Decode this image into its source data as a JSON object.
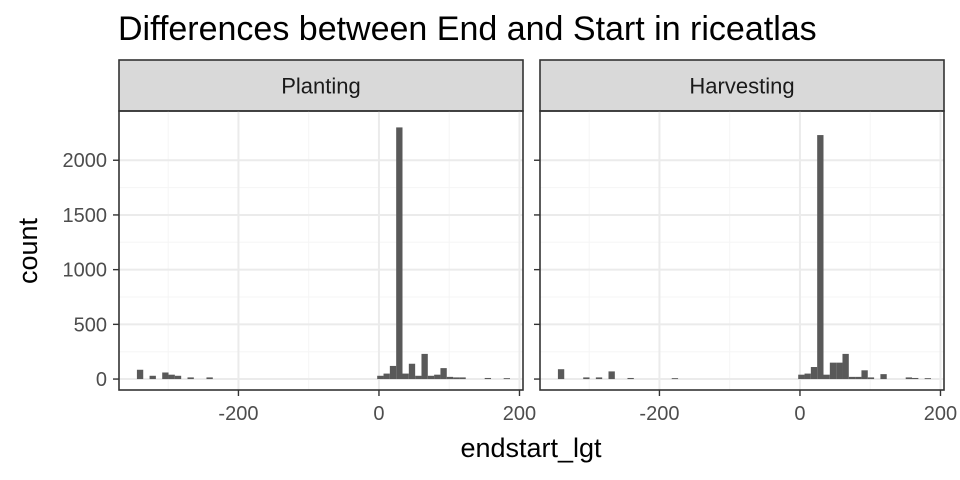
{
  "chart_data": {
    "type": "bar",
    "title": "Differences between End and Start in riceatlas",
    "xlabel": "endstart_lgt",
    "ylabel": "count",
    "xlim": [
      -370,
      205
    ],
    "ylim": [
      -100,
      2450
    ],
    "x_ticks": [
      -200,
      0,
      200
    ],
    "y_ticks": [
      0,
      500,
      1000,
      1500,
      2000
    ],
    "bin_width": 9,
    "grid": true,
    "panels": [
      {
        "name": "Planting",
        "bins": [
          {
            "x": -340,
            "count": 85
          },
          {
            "x": -322,
            "count": 30
          },
          {
            "x": -304,
            "count": 60
          },
          {
            "x": -295,
            "count": 40
          },
          {
            "x": -286,
            "count": 30
          },
          {
            "x": -268,
            "count": 15
          },
          {
            "x": -241,
            "count": 15
          },
          {
            "x": 2,
            "count": 30
          },
          {
            "x": 11,
            "count": 50
          },
          {
            "x": 20,
            "count": 120
          },
          {
            "x": 29,
            "count": 2300
          },
          {
            "x": 38,
            "count": 50
          },
          {
            "x": 47,
            "count": 140
          },
          {
            "x": 56,
            "count": 30
          },
          {
            "x": 65,
            "count": 230
          },
          {
            "x": 74,
            "count": 30
          },
          {
            "x": 83,
            "count": 40
          },
          {
            "x": 92,
            "count": 100
          },
          {
            "x": 101,
            "count": 20
          },
          {
            "x": 110,
            "count": 15
          },
          {
            "x": 119,
            "count": 15
          },
          {
            "x": 155,
            "count": 10
          },
          {
            "x": 182,
            "count": 8
          }
        ]
      },
      {
        "name": "Harvesting",
        "bins": [
          {
            "x": -340,
            "count": 90
          },
          {
            "x": -304,
            "count": 15
          },
          {
            "x": -286,
            "count": 15
          },
          {
            "x": -268,
            "count": 70
          },
          {
            "x": -241,
            "count": 10
          },
          {
            "x": -178,
            "count": 8
          },
          {
            "x": 2,
            "count": 40
          },
          {
            "x": 11,
            "count": 50
          },
          {
            "x": 20,
            "count": 110
          },
          {
            "x": 29,
            "count": 2230
          },
          {
            "x": 38,
            "count": 40
          },
          {
            "x": 47,
            "count": 150
          },
          {
            "x": 56,
            "count": 150
          },
          {
            "x": 65,
            "count": 230
          },
          {
            "x": 74,
            "count": 20
          },
          {
            "x": 83,
            "count": 20
          },
          {
            "x": 92,
            "count": 80
          },
          {
            "x": 101,
            "count": 15
          },
          {
            "x": 119,
            "count": 45
          },
          {
            "x": 155,
            "count": 15
          },
          {
            "x": 164,
            "count": 10
          },
          {
            "x": 182,
            "count": 8
          }
        ]
      }
    ]
  }
}
